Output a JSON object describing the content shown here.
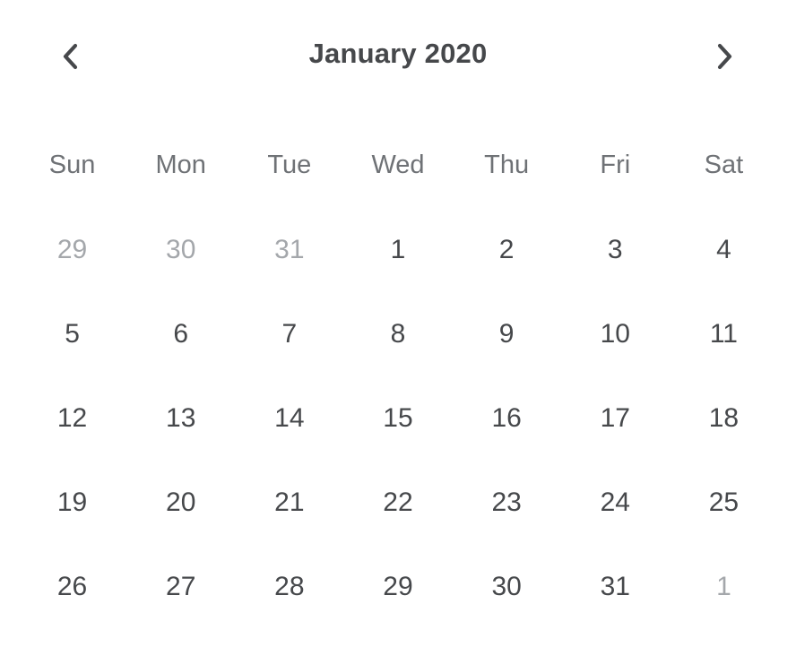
{
  "calendar": {
    "title": "January 2020",
    "prev_icon": "chevron-left-icon",
    "next_icon": "chevron-right-icon",
    "weekdays": [
      "Sun",
      "Mon",
      "Tue",
      "Wed",
      "Thu",
      "Fri",
      "Sat"
    ],
    "weeks": [
      [
        {
          "label": "29",
          "outside": true
        },
        {
          "label": "30",
          "outside": true
        },
        {
          "label": "31",
          "outside": true
        },
        {
          "label": "1",
          "outside": false
        },
        {
          "label": "2",
          "outside": false
        },
        {
          "label": "3",
          "outside": false
        },
        {
          "label": "4",
          "outside": false
        }
      ],
      [
        {
          "label": "5",
          "outside": false
        },
        {
          "label": "6",
          "outside": false
        },
        {
          "label": "7",
          "outside": false
        },
        {
          "label": "8",
          "outside": false
        },
        {
          "label": "9",
          "outside": false
        },
        {
          "label": "10",
          "outside": false
        },
        {
          "label": "11",
          "outside": false
        }
      ],
      [
        {
          "label": "12",
          "outside": false
        },
        {
          "label": "13",
          "outside": false
        },
        {
          "label": "14",
          "outside": false
        },
        {
          "label": "15",
          "outside": false
        },
        {
          "label": "16",
          "outside": false
        },
        {
          "label": "17",
          "outside": false
        },
        {
          "label": "18",
          "outside": false
        }
      ],
      [
        {
          "label": "19",
          "outside": false
        },
        {
          "label": "20",
          "outside": false
        },
        {
          "label": "21",
          "outside": false
        },
        {
          "label": "22",
          "outside": false
        },
        {
          "label": "23",
          "outside": false
        },
        {
          "label": "24",
          "outside": false
        },
        {
          "label": "25",
          "outside": false
        }
      ],
      [
        {
          "label": "26",
          "outside": false
        },
        {
          "label": "27",
          "outside": false
        },
        {
          "label": "28",
          "outside": false
        },
        {
          "label": "29",
          "outside": false
        },
        {
          "label": "30",
          "outside": false
        },
        {
          "label": "31",
          "outside": false
        },
        {
          "label": "1",
          "outside": true
        }
      ]
    ]
  },
  "colors": {
    "text": "#46484b",
    "weekday": "#6f7276",
    "outside_day": "#a4a7ab",
    "background": "#ffffff"
  }
}
